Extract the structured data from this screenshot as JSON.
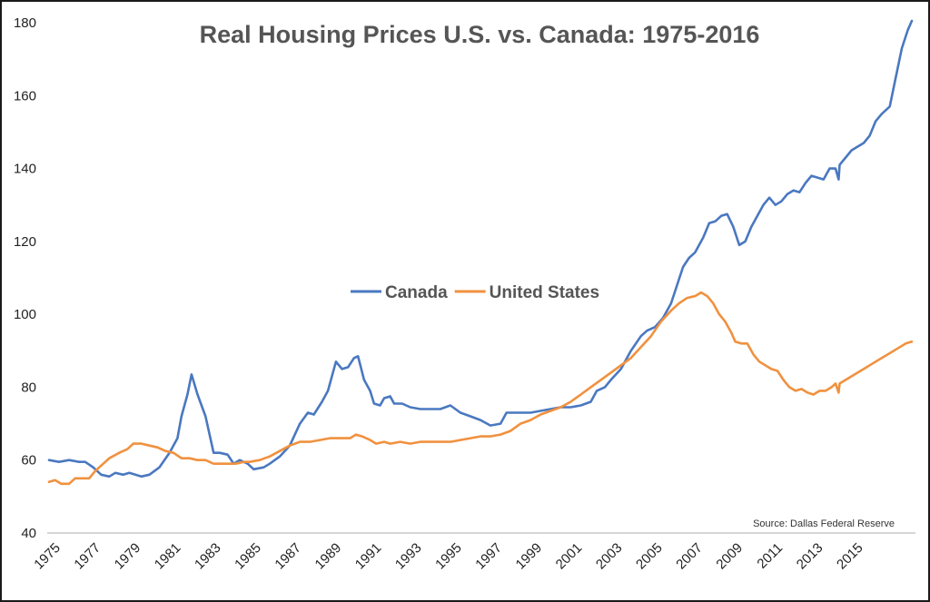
{
  "chart_data": {
    "type": "line",
    "title": "Real Housing Prices U.S. vs. Canada: 1975-2016",
    "xlabel": "",
    "ylabel": "",
    "xlim": [
      1975,
      2016.75
    ],
    "ylim": [
      40,
      180
    ],
    "y_ticks": [
      40,
      60,
      80,
      100,
      120,
      140,
      160,
      180
    ],
    "x_ticks": [
      "1975",
      "1977",
      "1979",
      "1981",
      "1983",
      "1985",
      "1987",
      "1989",
      "1991",
      "1993",
      "1995",
      "1997",
      "1999",
      "2001",
      "2003",
      "2005",
      "2007",
      "2009",
      "2011",
      "2013",
      "2015"
    ],
    "grid": false,
    "legend_position": "center",
    "source_note": "Source: Dallas Federal Reserve",
    "series": [
      {
        "name": "Canada",
        "color": "#4a78c0",
        "points": [
          [
            1975.0,
            60
          ],
          [
            1975.5,
            59.5
          ],
          [
            1976.0,
            60
          ],
          [
            1976.5,
            59.5
          ],
          [
            1976.8,
            59.5
          ],
          [
            1977.2,
            58
          ],
          [
            1977.6,
            56
          ],
          [
            1978.0,
            55.5
          ],
          [
            1978.3,
            56.5
          ],
          [
            1978.7,
            56
          ],
          [
            1979.0,
            56.5
          ],
          [
            1979.3,
            56
          ],
          [
            1979.6,
            55.5
          ],
          [
            1980.0,
            56
          ],
          [
            1980.5,
            58
          ],
          [
            1981.0,
            62
          ],
          [
            1981.4,
            66
          ],
          [
            1981.6,
            72
          ],
          [
            1981.9,
            78
          ],
          [
            1982.1,
            83.5
          ],
          [
            1982.4,
            78
          ],
          [
            1982.8,
            72
          ],
          [
            1983.2,
            62
          ],
          [
            1983.5,
            62
          ],
          [
            1983.9,
            61.5
          ],
          [
            1984.2,
            59
          ],
          [
            1984.5,
            60
          ],
          [
            1984.9,
            59
          ],
          [
            1985.2,
            57.5
          ],
          [
            1985.7,
            58
          ],
          [
            1986.0,
            59
          ],
          [
            1986.5,
            61
          ],
          [
            1987.0,
            64
          ],
          [
            1987.5,
            70
          ],
          [
            1987.9,
            73
          ],
          [
            1988.2,
            72.5
          ],
          [
            1988.6,
            76
          ],
          [
            1988.9,
            79
          ],
          [
            1989.3,
            87
          ],
          [
            1989.6,
            85
          ],
          [
            1989.9,
            85.5
          ],
          [
            1990.2,
            88
          ],
          [
            1990.4,
            88.5
          ],
          [
            1990.7,
            82
          ],
          [
            1991.0,
            79
          ],
          [
            1991.2,
            75.5
          ],
          [
            1991.5,
            75
          ],
          [
            1991.7,
            77
          ],
          [
            1992.0,
            77.5
          ],
          [
            1992.2,
            75.5
          ],
          [
            1992.6,
            75.5
          ],
          [
            1993.0,
            74.5
          ],
          [
            1993.5,
            74
          ],
          [
            1994.0,
            74
          ],
          [
            1994.5,
            74
          ],
          [
            1995.0,
            75
          ],
          [
            1995.5,
            73
          ],
          [
            1996.0,
            72
          ],
          [
            1996.5,
            71
          ],
          [
            1997.0,
            69.5
          ],
          [
            1997.5,
            70
          ],
          [
            1997.8,
            73
          ],
          [
            1998.2,
            73
          ],
          [
            1998.6,
            73
          ],
          [
            1999.0,
            73
          ],
          [
            1999.5,
            73.5
          ],
          [
            2000.0,
            74
          ],
          [
            2000.5,
            74.5
          ],
          [
            2001.0,
            74.5
          ],
          [
            2001.5,
            75
          ],
          [
            2002.0,
            76
          ],
          [
            2002.3,
            79
          ],
          [
            2002.7,
            80
          ],
          [
            2003.0,
            82
          ],
          [
            2003.5,
            85
          ],
          [
            2004.0,
            90
          ],
          [
            2004.5,
            94
          ],
          [
            2004.8,
            95.5
          ],
          [
            2005.2,
            96.5
          ],
          [
            2005.6,
            99
          ],
          [
            2006.0,
            103
          ],
          [
            2006.3,
            108
          ],
          [
            2006.6,
            113
          ],
          [
            2006.9,
            115.5
          ],
          [
            2007.2,
            117
          ],
          [
            2007.6,
            121
          ],
          [
            2007.9,
            125
          ],
          [
            2008.2,
            125.5
          ],
          [
            2008.5,
            127
          ],
          [
            2008.8,
            127.5
          ],
          [
            2009.1,
            124
          ],
          [
            2009.4,
            119
          ],
          [
            2009.7,
            120
          ],
          [
            2010.0,
            124
          ],
          [
            2010.3,
            127
          ],
          [
            2010.6,
            130
          ],
          [
            2010.9,
            132
          ],
          [
            2011.2,
            130
          ],
          [
            2011.5,
            131
          ],
          [
            2011.8,
            133
          ],
          [
            2012.1,
            134
          ],
          [
            2012.4,
            133.5
          ],
          [
            2012.7,
            136
          ],
          [
            2013.0,
            138
          ],
          [
            2013.3,
            137.5
          ],
          [
            2013.6,
            137
          ],
          [
            2013.9,
            140
          ],
          [
            2014.2,
            140
          ],
          [
            2014.35,
            137
          ],
          [
            2014.4,
            141
          ],
          [
            2014.7,
            143
          ],
          [
            2015.0,
            145
          ],
          [
            2015.3,
            146
          ],
          [
            2015.6,
            147
          ],
          [
            2015.9,
            149
          ],
          [
            2016.2,
            153
          ],
          [
            2016.5,
            155
          ],
          [
            2016.9,
            157
          ],
          [
            2017.2,
            165
          ],
          [
            2017.5,
            173
          ],
          [
            2017.8,
            178
          ],
          [
            2018.0,
            180.5
          ]
        ]
      },
      {
        "name": "United States",
        "color": "#f0913f",
        "points": [
          [
            1975.0,
            54
          ],
          [
            1975.3,
            54.5
          ],
          [
            1975.6,
            53.5
          ],
          [
            1976.0,
            53.5
          ],
          [
            1976.3,
            55
          ],
          [
            1976.6,
            55
          ],
          [
            1977.0,
            55
          ],
          [
            1977.3,
            57
          ],
          [
            1977.7,
            59
          ],
          [
            1978.0,
            60.5
          ],
          [
            1978.5,
            62
          ],
          [
            1978.9,
            63
          ],
          [
            1979.2,
            64.5
          ],
          [
            1979.6,
            64.5
          ],
          [
            1980.0,
            64
          ],
          [
            1980.4,
            63.5
          ],
          [
            1980.8,
            62.5
          ],
          [
            1981.2,
            62
          ],
          [
            1981.6,
            60.5
          ],
          [
            1982.0,
            60.5
          ],
          [
            1982.4,
            60
          ],
          [
            1982.8,
            60
          ],
          [
            1983.2,
            59
          ],
          [
            1983.5,
            59
          ],
          [
            1983.9,
            59
          ],
          [
            1984.3,
            59
          ],
          [
            1984.7,
            59.5
          ],
          [
            1985.0,
            59.5
          ],
          [
            1985.5,
            60
          ],
          [
            1986.0,
            61
          ],
          [
            1986.5,
            62.5
          ],
          [
            1987.0,
            64
          ],
          [
            1987.5,
            65
          ],
          [
            1988.0,
            65
          ],
          [
            1988.5,
            65.5
          ],
          [
            1989.0,
            66
          ],
          [
            1989.5,
            66
          ],
          [
            1990.0,
            66
          ],
          [
            1990.3,
            67
          ],
          [
            1990.6,
            66.5
          ],
          [
            1991.0,
            65.5
          ],
          [
            1991.3,
            64.5
          ],
          [
            1991.7,
            65
          ],
          [
            1992.0,
            64.5
          ],
          [
            1992.5,
            65
          ],
          [
            1993.0,
            64.5
          ],
          [
            1993.5,
            65
          ],
          [
            1994.0,
            65
          ],
          [
            1994.5,
            65
          ],
          [
            1995.0,
            65
          ],
          [
            1995.5,
            65.5
          ],
          [
            1996.0,
            66
          ],
          [
            1996.5,
            66.5
          ],
          [
            1997.0,
            66.5
          ],
          [
            1997.5,
            67
          ],
          [
            1998.0,
            68
          ],
          [
            1998.5,
            70
          ],
          [
            1999.0,
            71
          ],
          [
            1999.5,
            72.5
          ],
          [
            2000.0,
            73.5
          ],
          [
            2000.5,
            74.5
          ],
          [
            2001.0,
            76
          ],
          [
            2001.5,
            78
          ],
          [
            2002.0,
            80
          ],
          [
            2002.5,
            82
          ],
          [
            2003.0,
            84
          ],
          [
            2003.5,
            86
          ],
          [
            2004.0,
            88
          ],
          [
            2004.5,
            91
          ],
          [
            2005.0,
            94
          ],
          [
            2005.5,
            98
          ],
          [
            2006.0,
            101
          ],
          [
            2006.4,
            103
          ],
          [
            2006.8,
            104.5
          ],
          [
            2007.2,
            105
          ],
          [
            2007.5,
            106
          ],
          [
            2007.8,
            105
          ],
          [
            2008.1,
            103
          ],
          [
            2008.4,
            100
          ],
          [
            2008.7,
            98
          ],
          [
            2009.0,
            95
          ],
          [
            2009.2,
            92.5
          ],
          [
            2009.5,
            92
          ],
          [
            2009.8,
            92
          ],
          [
            2010.1,
            89
          ],
          [
            2010.4,
            87
          ],
          [
            2010.7,
            86
          ],
          [
            2011.0,
            85
          ],
          [
            2011.3,
            84.5
          ],
          [
            2011.6,
            82
          ],
          [
            2011.9,
            80
          ],
          [
            2012.2,
            79
          ],
          [
            2012.5,
            79.5
          ],
          [
            2012.8,
            78.5
          ],
          [
            2013.1,
            78
          ],
          [
            2013.4,
            79
          ],
          [
            2013.7,
            79
          ],
          [
            2014.0,
            80
          ],
          [
            2014.2,
            81
          ],
          [
            2014.35,
            78.5
          ],
          [
            2014.4,
            81
          ],
          [
            2014.7,
            82
          ],
          [
            2015.0,
            83
          ],
          [
            2015.3,
            84
          ],
          [
            2015.6,
            85
          ],
          [
            2015.9,
            86
          ],
          [
            2016.2,
            87
          ],
          [
            2016.5,
            88
          ],
          [
            2016.8,
            89
          ],
          [
            2017.1,
            90
          ],
          [
            2017.4,
            91
          ],
          [
            2017.7,
            92
          ],
          [
            2018.0,
            92.5
          ]
        ]
      }
    ]
  }
}
